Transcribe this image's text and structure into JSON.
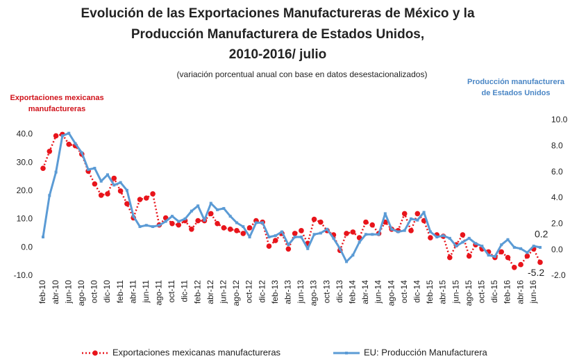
{
  "chart_data": {
    "type": "line",
    "title": [
      "Evolución de las Exportaciones Manufactureras de México y la",
      "Producción Manufacturera de Estados Unidos,",
      "2010-2016/ julio"
    ],
    "subtitle": "(variación porcentual anual con base en datos desestacionalizados)",
    "y_label": [
      "Exportaciones mexicanas",
      "manufactureras"
    ],
    "y2_label": [
      "Producción manufacturera",
      "de Estados Unidos"
    ],
    "categories": [
      "feb-10",
      null,
      "abr-10",
      null,
      "jun-10",
      null,
      "ago-10",
      null,
      "oct-10",
      null,
      "dic-10",
      null,
      "feb-11",
      null,
      "abr-11",
      null,
      "jun-11",
      null,
      "ago-11",
      null,
      "oct-11",
      null,
      "dic-11",
      null,
      "feb-12",
      null,
      "abr-12",
      null,
      "jun-12",
      null,
      "ago-12",
      null,
      "oct-12",
      null,
      "dic-12",
      null,
      "feb-13",
      null,
      "abr-13",
      null,
      "jun-13",
      null,
      "ago-13",
      null,
      "oct-13",
      null,
      "dic-13",
      null,
      "feb-14",
      null,
      "abr-14",
      null,
      "jun-14",
      null,
      "ago-14",
      null,
      "oct-14",
      null,
      "dic-14",
      null,
      "feb-15",
      null,
      "abr-15",
      null,
      "jun-15",
      null,
      "ago-15",
      null,
      "oct-15",
      null,
      "dic-15",
      null,
      "feb-16",
      null,
      "abr-16",
      null,
      "jun-16",
      null
    ],
    "series": [
      {
        "name": "Exportaciones mexicanas manufactureras",
        "color": "#e8141b",
        "axis": "y",
        "style": "dotted",
        "values": [
          28,
          34,
          39.5,
          40,
          36.5,
          36,
          33,
          27,
          22.5,
          18.5,
          19,
          24.5,
          20,
          15.5,
          10.5,
          17,
          17.5,
          19,
          8,
          10.5,
          8.5,
          8,
          9.5,
          6.5,
          9.5,
          9.5,
          12,
          8.5,
          7,
          6.5,
          6,
          5,
          7,
          9.5,
          9,
          0.5,
          2.5,
          5,
          -0.5,
          5,
          6,
          1.5,
          10,
          9,
          6,
          4.5,
          -1,
          5,
          5.5,
          3.5,
          9,
          8,
          5,
          9,
          6.5,
          6,
          12,
          6,
          12,
          9.5,
          3.5,
          4.5,
          4,
          -3.5,
          1,
          4.5,
          -3,
          1,
          -0.5,
          -1.5,
          -3.5,
          -1.5,
          -3.5,
          -7,
          -6,
          -3,
          -0.5,
          -5.2
        ]
      },
      {
        "name": "EU: Producción Manufacturera",
        "color": "#5b9bd5",
        "axis": "y2",
        "style": "solid",
        "values": [
          1.0,
          4.2,
          6.0,
          8.8,
          9.0,
          8.2,
          7.5,
          6.2,
          6.3,
          5.3,
          5.8,
          5.0,
          5.2,
          4.6,
          2.6,
          1.8,
          1.9,
          1.8,
          1.9,
          2.2,
          2.6,
          2.2,
          2.4,
          3.0,
          3.4,
          2.3,
          3.6,
          3.1,
          3.2,
          2.6,
          2.1,
          1.8,
          1.0,
          2.1,
          2.1,
          1.0,
          1.1,
          1.4,
          0.4,
          1.0,
          1.0,
          0.1,
          1.2,
          1.3,
          1.6,
          0.9,
          0.1,
          -0.9,
          -0.4,
          0.6,
          1.2,
          1.2,
          1.2,
          2.8,
          1.6,
          1.4,
          1.5,
          2.4,
          2.3,
          2.9,
          1.4,
          1.0,
          1.1,
          0.9,
          0.3,
          0.6,
          0.9,
          0.5,
          0.3,
          -0.4,
          -0.5,
          0.4,
          0.8,
          0.2,
          0.1,
          -0.2,
          0.3,
          0.2
        ]
      }
    ],
    "ylim": [
      -10,
      45
    ],
    "yticks": [
      {
        "value": -10,
        "label": "-10.0"
      },
      {
        "value": 0,
        "label": "0.0"
      },
      {
        "value": 10,
        "label": "10.0"
      },
      {
        "value": 20,
        "label": "20.0"
      },
      {
        "value": 30,
        "label": "30.0"
      },
      {
        "value": 40,
        "label": "40.0"
      }
    ],
    "y2lim": [
      -2,
      10
    ],
    "y2ticks": [
      {
        "value": -2,
        "label": "-2.0"
      },
      {
        "value": 0,
        "label": "0.0"
      },
      {
        "value": 2,
        "label": "2.0"
      },
      {
        "value": 4,
        "label": "4.0"
      },
      {
        "value": 6,
        "label": "6.0"
      },
      {
        "value": 8,
        "label": "8.0"
      },
      {
        "value": 10,
        "label": "10.0"
      }
    ],
    "legend": "bottom"
  }
}
